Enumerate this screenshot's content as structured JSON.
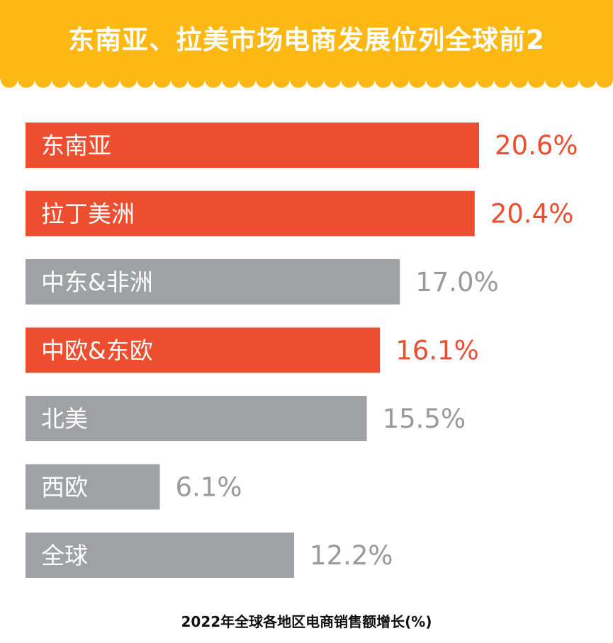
{
  "title": "东南亚、拉美市场电商发展位列全球前2",
  "caption": "2022年全球各地区电商销售额增长(%)",
  "colors": {
    "header": "#FDB813",
    "highlight": "#EC4E2F",
    "neutral_bar": "#A0A1A5",
    "neutral_value": "#9A9A9E"
  },
  "chart_data": {
    "type": "bar",
    "orientation": "horizontal",
    "categories": [
      "东南亚",
      "拉丁美洲",
      "中东&非洲",
      "中欧&东欧",
      "北美",
      "西欧",
      "全球"
    ],
    "values": [
      20.6,
      20.4,
      17.0,
      16.1,
      15.5,
      6.1,
      12.2
    ],
    "value_labels": [
      "20.6%",
      "20.4%",
      "17.0%",
      "16.1%",
      "15.5%",
      "6.1%",
      "12.2%"
    ],
    "highlighted": [
      true,
      true,
      false,
      true,
      false,
      false,
      false
    ],
    "unit": "%"
  }
}
